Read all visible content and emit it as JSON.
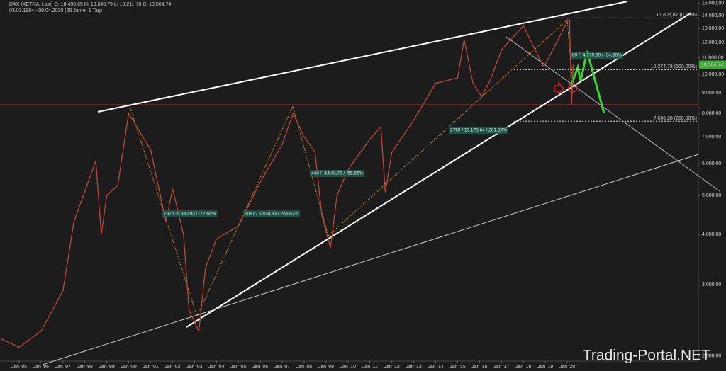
{
  "chart_data": {
    "type": "line",
    "title": "DAX (XETRA, Last)  O: 10.490,65  H: 10.649,79  L: 10.211,70  C: 10.564,74",
    "subtitle": "03.03.1994 - 09.04.2020 (26 Jahre, 1 Tag)",
    "watermark": "Trading-Portal.NET",
    "log_scale": true,
    "xlim": [
      1994.13,
      2025.98
    ],
    "ylim": [
      1940,
      15300
    ],
    "xticks": [
      {
        "value": 1995,
        "label": "Jan '95"
      },
      {
        "value": 1996,
        "label": "Jan '96"
      },
      {
        "value": 1997,
        "label": "Jan '97"
      },
      {
        "value": 1998,
        "label": "Jan '98"
      },
      {
        "value": 1999,
        "label": "Jan '99"
      },
      {
        "value": 2000,
        "label": "Jan '00"
      },
      {
        "value": 2001,
        "label": "Jan '01"
      },
      {
        "value": 2002,
        "label": "Jan '02"
      },
      {
        "value": 2003,
        "label": "Jan '03"
      },
      {
        "value": 2004,
        "label": "Jan '04"
      },
      {
        "value": 2005,
        "label": "Jan '05"
      },
      {
        "value": 2006,
        "label": "Jan '06"
      },
      {
        "value": 2007,
        "label": "Jan '07"
      },
      {
        "value": 2008,
        "label": "Jan '08"
      },
      {
        "value": 2009,
        "label": "Jan '09"
      },
      {
        "value": 2010,
        "label": "Jan '10"
      },
      {
        "value": 2011,
        "label": "Jan '11"
      },
      {
        "value": 2012,
        "label": "Jan '12"
      },
      {
        "value": 2013,
        "label": "Jan '13"
      },
      {
        "value": 2014,
        "label": "Jan '14"
      },
      {
        "value": 2015,
        "label": "Jan '15"
      },
      {
        "value": 2016,
        "label": "Jan '16"
      },
      {
        "value": 2017,
        "label": "Jan '17"
      },
      {
        "value": 2018,
        "label": "Jan '18"
      },
      {
        "value": 2019,
        "label": "Jan '19"
      },
      {
        "value": 2020,
        "label": "Jan '20"
      }
    ],
    "yticks": [
      {
        "value": 2000,
        "label": "2.000,00"
      },
      {
        "value": 3000,
        "label": "3.000,00"
      },
      {
        "value": 4000,
        "label": "4.000,00"
      },
      {
        "value": 5000,
        "label": "5.000,00"
      },
      {
        "value": 6000,
        "label": "6.000,00"
      },
      {
        "value": 7000,
        "label": "7.000,00"
      },
      {
        "value": 8000,
        "label": "8.000,00"
      },
      {
        "value": 9000,
        "label": "9.000,00"
      },
      {
        "value": 10000,
        "label": "10.000,00"
      },
      {
        "value": 11000,
        "label": "11.000,00"
      },
      {
        "value": 12000,
        "label": "12.000,00"
      },
      {
        "value": 13000,
        "label": "13.000,00"
      },
      {
        "value": 14000,
        "label": "14.000,00"
      },
      {
        "value": 15000,
        "label": "15.000,00"
      }
    ],
    "series": [
      {
        "name": "DAX",
        "color": "#c94a3c",
        "x": [
          1994.2,
          1995,
          1996,
          1997,
          1997.5,
          1998.5,
          1998.75,
          1999,
          1999.5,
          2000,
          2000.5,
          2001,
          2001.7,
          2002,
          2002.5,
          2002.75,
          2003.2,
          2003.5,
          2004,
          2005,
          2006,
          2007,
          2007.5,
          2008,
          2008.5,
          2008.8,
          2009.2,
          2009.5,
          2010,
          2011,
          2011.5,
          2011.7,
          2012,
          2013,
          2014,
          2015,
          2015.3,
          2015.7,
          2016.1,
          2016.5,
          2017,
          2018,
          2018.9,
          2019,
          2020,
          2020.1,
          2020.2,
          2020.27
        ],
        "values": [
          2200,
          2100,
          2300,
          2900,
          4300,
          6100,
          4000,
          5000,
          5300,
          8000,
          7200,
          6500,
          4300,
          5200,
          4000,
          2600,
          2300,
          3300,
          3900,
          4200,
          5400,
          6700,
          8000,
          7000,
          6400,
          4500,
          3700,
          5000,
          5800,
          6900,
          7400,
          5100,
          6400,
          7700,
          9500,
          9800,
          12200,
          9500,
          8800,
          9700,
          11500,
          13200,
          10500,
          10600,
          13500,
          13700,
          8400,
          10564.74
        ]
      }
    ],
    "last_price": {
      "value": 10564.74,
      "label": "10.564,74"
    },
    "levels": [
      {
        "value": 13806.87,
        "label": "13.806,87 (0,00%)"
      },
      {
        "value": 10274.78,
        "label": "10.274,78 (100,00%)"
      },
      {
        "value": 7646.28,
        "label": "7.646,28 (200,00%)"
      }
    ],
    "annotations": [
      "782 / -5.930,93 / -72,65%",
      "1087 / 5.930,93 / 265,67%",
      "440 / -4.543,78 / -55,66%",
      "2755 / 10.173,64 / 281,07%",
      "59 / -4.779,59 / -34,58%"
    ]
  }
}
